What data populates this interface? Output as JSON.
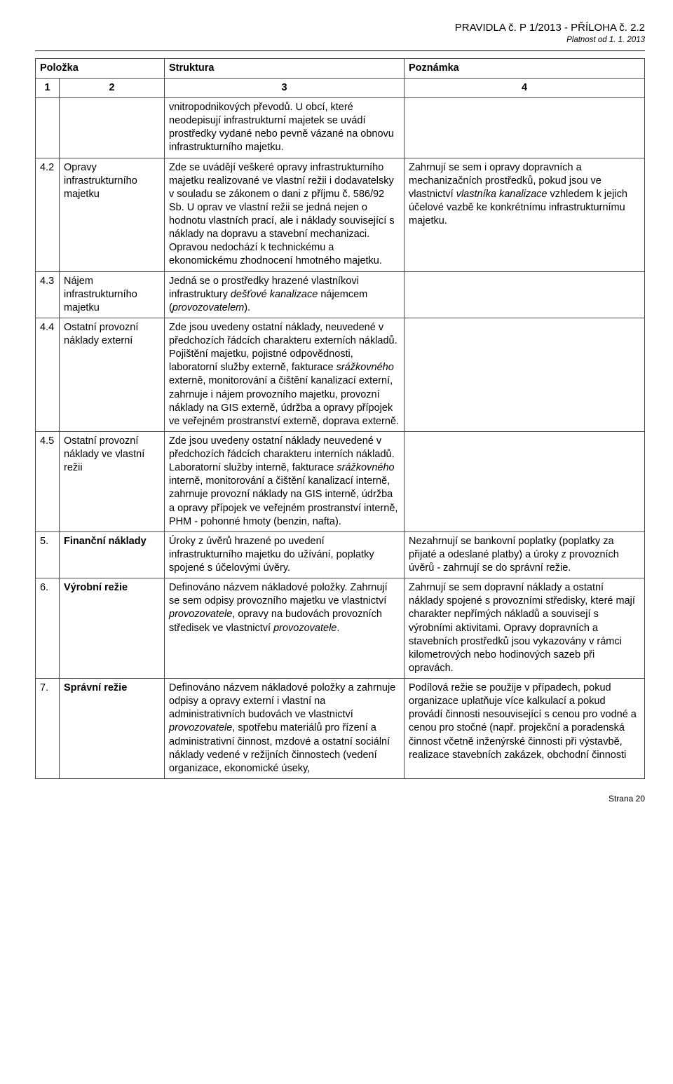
{
  "header": {
    "title": "PRAVIDLA č. P 1/2013 - PŘÍLOHA č. 2.2",
    "date": "Platnost od 1. 1. 2013"
  },
  "table": {
    "columns": {
      "h1": "Položka",
      "h2": "Struktura",
      "h3": "Poznámka",
      "s1": "1",
      "s2": "2",
      "s3": "3",
      "s4": "4"
    },
    "rows": {
      "r0": {
        "struct": "vnitropodnikových převodů. U obcí, které neodepisují infrastrukturní majetek se uvádí prostředky vydané nebo pevně vázané na obnovu infrastrukturního majetku."
      },
      "r42": {
        "num": "4.2",
        "item": "Opravy infrastrukturního majetku",
        "struct": "Zde se uvádějí veškeré opravy infrastrukturního majetku realizované ve vlastní režii i dodavatelsky v souladu se zákonem o dani z příjmu č. 586/92 Sb. U oprav ve vlastní režii se jedná nejen o hodnotu vlastních prací, ale i náklady související s náklady na dopravu a stavební mechanizaci. Opravou nedochází k technickému a ekonomickému zhodnocení hmotného majetku.",
        "note_pre": "Zahrnují se sem i opravy dopravních a mechanizačních prostředků, pokud jsou ve vlastnictví ",
        "note_italic": "vlastníka kanalizace",
        "note_post": " vzhledem k jejich účelové vazbě ke konkrétnímu infrastrukturnímu majetku."
      },
      "r43": {
        "num": "4.3",
        "item": "Nájem infrastrukturního majetku",
        "struct_pre": "Jedná se o prostředky hrazené vlastníkovi infrastruktury ",
        "struct_i1": "dešťové kanalizace",
        "struct_mid": " nájemcem (",
        "struct_i2": "provozovatelem",
        "struct_post": ")."
      },
      "r44": {
        "num": "4.4",
        "item": "Ostatní provozní náklady externí",
        "struct_pre": "Zde jsou uvedeny ostatní náklady, neuvedené v předchozích řádcích charakteru externích nákladů. Pojištění majetku, pojistné odpovědnosti, laboratorní služby externě, fakturace ",
        "struct_i1": "srážkovného",
        "struct_post": " externě, monitorování a čištění kanalizací externí, zahrnuje i nájem provozního majetku, provozní náklady na GIS externě, údržba a opravy přípojek ve veřejném prostranství externě, doprava externě."
      },
      "r45": {
        "num": "4.5",
        "item": "Ostatní provozní náklady ve vlastní režii",
        "struct_pre": "Zde jsou uvedeny ostatní náklady neuvedené v předchozích řádcích charakteru interních nákladů. Laboratorní služby interně, fakturace ",
        "struct_i1": "srážkovného",
        "struct_post": " interně, monitorování a čištění kanalizací interně, zahrnuje provozní náklady na GIS interně, údržba a opravy přípojek ve veřejném prostranství interně, PHM - pohonné hmoty (benzin, nafta)."
      },
      "r5": {
        "num": "5.",
        "item": "Finanční náklady",
        "struct": "Úroky z úvěrů hrazené po uvedení infrastrukturního majetku do užívání, poplatky spojené s účelovými úvěry.",
        "note": "Nezahrnují se bankovní poplatky (poplatky za přijaté a odeslané platby) a úroky z provozních úvěrů - zahrnují se do správní režie."
      },
      "r6": {
        "num": "6.",
        "item": "Výrobní režie",
        "struct_pre": "Definováno názvem nákladové položky. Zahrnují se sem odpisy provozního majetku ve vlastnictví ",
        "struct_i1": "provozovatele",
        "struct_mid": ", opravy na budovách provozních středisek ve vlastnictví ",
        "struct_i2": "provozovatele",
        "struct_post": ".",
        "note": "Zahrnují se sem dopravní náklady a ostatní náklady spojené s provozními středisky, které mají charakter nepřímých nákladů a souvisejí s výrobními aktivitami. Opravy dopravních a stavebních prostředků jsou vykazovány v rámci kilometrových nebo hodinových sazeb při opravách."
      },
      "r7": {
        "num": "7.",
        "item": "Správní režie",
        "struct_pre": "Definováno názvem nákladové položky a zahrnuje odpisy a opravy externí i vlastní na administrativních budovách ve vlastnictví ",
        "struct_i1": "provozovatele",
        "struct_post": ", spotřebu materiálů pro řízení a administrativní činnost, mzdové a ostatní sociální náklady vedené v režijních činnostech (vedení organizace, ekonomické úseky,",
        "note": "Podílová režie se použije v případech, pokud organizace uplatňuje více kalkulací a pokud provádí činnosti nesouvisející s cenou pro vodné a cenou pro stočné (např. projekční a poradenská činnost včetně inženýrské činnosti při výstavbě, realizace stavebních zakázek, obchodní činnosti"
      }
    }
  },
  "footer": {
    "page": "Strana 20"
  }
}
